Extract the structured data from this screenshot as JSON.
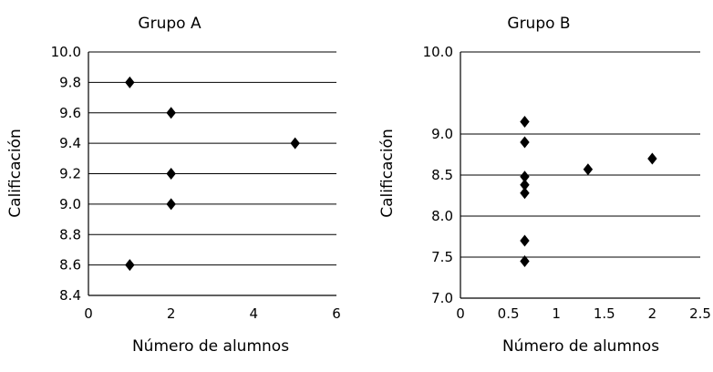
{
  "chart_data": [
    {
      "type": "scatter",
      "title": "Grupo A",
      "xlabel": "Número de alumnos",
      "ylabel": "Calificación",
      "xlim": [
        0,
        6
      ],
      "ylim": [
        8.4,
        10.0
      ],
      "xticks": [
        0,
        2,
        4,
        6
      ],
      "yticks": [
        8.4,
        8.6,
        8.8,
        9.0,
        9.2,
        9.4,
        9.6,
        9.8,
        10.0
      ],
      "xtick_labels": [
        "0",
        "2",
        "4",
        "6"
      ],
      "ytick_labels": [
        "8.4",
        "8.6",
        "8.8",
        "9.0",
        "9.2",
        "9.4",
        "9.6",
        "9.8",
        "10.0"
      ],
      "grid": "horizontal",
      "marker": "diamond",
      "points": [
        {
          "x": 1,
          "y": 9.8
        },
        {
          "x": 2,
          "y": 9.6
        },
        {
          "x": 5,
          "y": 9.4
        },
        {
          "x": 2,
          "y": 9.2
        },
        {
          "x": 2,
          "y": 9.0
        },
        {
          "x": 1,
          "y": 8.6
        }
      ]
    },
    {
      "type": "scatter",
      "title": "Grupo B",
      "xlabel": "Número de alumnos",
      "ylabel": "Calificación",
      "xlim": [
        0,
        2.5
      ],
      "ylim": [
        7.0,
        10.0
      ],
      "xticks": [
        0,
        0.5,
        1,
        1.5,
        2,
        2.5
      ],
      "yticks": [
        7.0,
        7.5,
        8.0,
        8.5,
        9.0,
        10.0
      ],
      "xtick_labels": [
        "0",
        "0.5",
        "1",
        "1.5",
        "2",
        "2.5"
      ],
      "ytick_labels": [
        "7.0",
        "7.5",
        "8.0",
        "8.5",
        "9.0",
        "10.0"
      ],
      "grid": "horizontal",
      "marker": "diamond",
      "points": [
        {
          "x": 0.67,
          "y": 9.15
        },
        {
          "x": 0.67,
          "y": 8.9
        },
        {
          "x": 0.67,
          "y": 8.48
        },
        {
          "x": 0.67,
          "y": 8.38
        },
        {
          "x": 0.67,
          "y": 8.28
        },
        {
          "x": 0.67,
          "y": 7.7
        },
        {
          "x": 0.67,
          "y": 7.45
        },
        {
          "x": 1.33,
          "y": 8.57
        },
        {
          "x": 2.0,
          "y": 8.7
        }
      ]
    }
  ]
}
